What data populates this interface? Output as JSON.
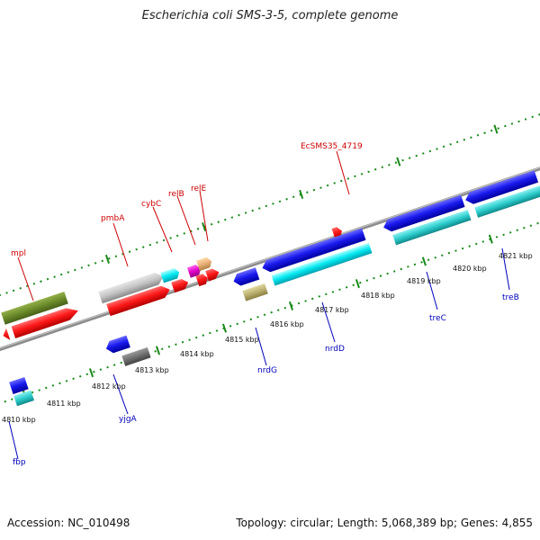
{
  "title": "Escherichia coli SMS-3-5, complete genome",
  "footer": {
    "accession": "Accession: NC_010498",
    "summary": "Topology: circular; Length: 5,068,389 bp; Genes: 4,855"
  },
  "colors": {
    "backbone": "#8c8c8c",
    "ticks": "#1a8a1a",
    "label_top": "#cc0000",
    "label_bottom": "#0000bb"
  },
  "kbp_labels": [
    "4810 kbp",
    "4811 kbp",
    "4812 kbp",
    "4813 kbp",
    "4814 kbp",
    "4815 kbp",
    "4816 kbp",
    "4817 kbp",
    "4818 kbp",
    "4819 kbp",
    "4820 kbp",
    "4821 kbp"
  ],
  "gene_labels_top": [
    "mpl",
    "pmbA",
    "cybC",
    "relB",
    "relE",
    "EcSMS35_4719"
  ],
  "gene_labels_bottom": [
    "fbp",
    "yjgA",
    "nrdG",
    "nrdD",
    "treC",
    "treB"
  ]
}
